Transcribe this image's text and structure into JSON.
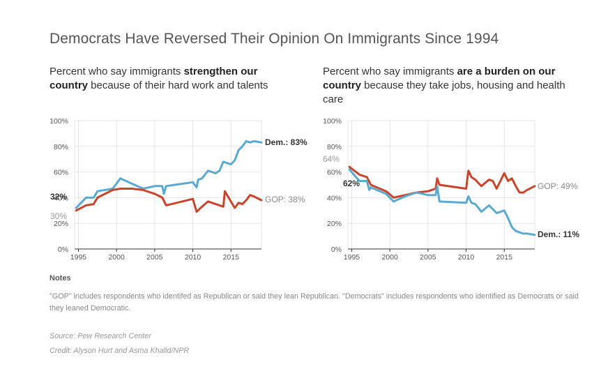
{
  "title": "Democrats Have Reversed Their Opinion On Immigrants Since 1994",
  "left_subtitle": {
    "pre": "Percent who say immigrants ",
    "bold1": "strengthen our",
    "bold2": "country",
    "post": " because of their hard work and talents"
  },
  "right_subtitle": {
    "pre": "Percent who say immigrants ",
    "bold1": "are a burden on our",
    "bold2": "country",
    "post": " because they take jobs, housing and health care"
  },
  "colors": {
    "dem": "#5aa9d0",
    "gop": "#c8452c",
    "grid": "#e5e5e5",
    "axis": "#333333"
  },
  "chart_data": [
    {
      "type": "line",
      "title": "Percent who say immigrants strengthen our country because of their hard work and talents",
      "xlim": [
        1994.5,
        2019
      ],
      "ylim": [
        0,
        100
      ],
      "x_ticks": [
        1995,
        2000,
        2005,
        2010,
        2015
      ],
      "y_ticks": [
        0,
        20,
        40,
        60,
        80,
        100
      ],
      "y_tick_labels": [
        "0%",
        "20%",
        "40%",
        "60%",
        "80%",
        "100%"
      ],
      "grid": true,
      "series": [
        {
          "name": "Dem.",
          "x": [
            1994.7,
            1996,
            1997,
            1997.5,
            1999.5,
            2000.5,
            2002,
            2003.5,
            2005,
            2006,
            2006.2,
            2006.5,
            2010,
            2010.5,
            2010.7,
            2011.2,
            2012,
            2013,
            2013.5,
            2014,
            2015,
            2015.5,
            2016,
            2016.5,
            2017,
            2017.5,
            2018,
            2019
          ],
          "y": [
            32,
            40,
            40,
            45,
            47,
            55,
            51,
            47,
            49,
            49,
            43,
            49,
            52,
            48,
            54,
            55,
            61,
            59,
            61,
            68,
            66,
            69,
            77,
            80,
            84,
            83,
            84,
            83
          ]
        },
        {
          "name": "GOP",
          "x": [
            1994.7,
            1996,
            1997,
            1997.5,
            1999.5,
            2000.5,
            2002,
            2003.5,
            2005,
            2006,
            2006.5,
            2010,
            2010.5,
            2011.2,
            2012,
            2013,
            2014,
            2014.2,
            2015,
            2015.5,
            2016,
            2016.5,
            2017,
            2017.5,
            2018,
            2019
          ],
          "y": [
            30,
            34,
            35,
            40,
            46,
            47,
            47,
            46,
            43,
            40,
            34,
            39,
            29,
            33,
            37,
            35,
            33,
            45,
            37,
            32,
            36,
            35,
            38,
            42,
            41,
            38
          ]
        }
      ],
      "annotations": {
        "dem_start": "32%",
        "gop_start": "30%",
        "dem_end": "Dem.: 83%",
        "gop_end": "GOP: 38%"
      }
    },
    {
      "type": "line",
      "title": "Percent who say immigrants are a burden on our country because they take jobs, housing and health care",
      "xlim": [
        1994.5,
        2019
      ],
      "ylim": [
        0,
        100
      ],
      "x_ticks": [
        1995,
        2000,
        2005,
        2010,
        2015
      ],
      "y_ticks": [
        0,
        20,
        40,
        60,
        80,
        100
      ],
      "y_tick_labels": [
        "0%",
        "20%",
        "40%",
        "60%",
        "80%",
        "100%"
      ],
      "grid": true,
      "series": [
        {
          "name": "GOP",
          "x": [
            1994.7,
            1996,
            1997,
            1997.5,
            1999.5,
            2000.5,
            2002,
            2003.5,
            2005,
            2006,
            2006.2,
            2006.5,
            2010,
            2010.3,
            2010.7,
            2011.2,
            2012,
            2013,
            2013.5,
            2014,
            2015,
            2015.5,
            2016,
            2016.5,
            2017,
            2017.5,
            2018,
            2019
          ],
          "y": [
            64,
            58,
            56,
            50,
            45,
            40,
            42,
            44,
            45,
            47,
            55,
            50,
            47,
            61,
            56,
            54,
            49,
            54,
            53,
            47,
            59,
            53,
            55,
            49,
            44,
            44,
            46,
            49
          ]
        },
        {
          "name": "Dem.",
          "x": [
            1994.7,
            1996,
            1997,
            1997.3,
            1997.5,
            1999.5,
            2000.5,
            2002,
            2003.5,
            2005,
            2006,
            2006.2,
            2006.5,
            2010,
            2010.3,
            2010.7,
            2011.2,
            2012,
            2013,
            2014,
            2015,
            2015.5,
            2016,
            2016.5,
            2017,
            2017.5,
            2018,
            2019
          ],
          "y": [
            62,
            53,
            53,
            46,
            48,
            43,
            37,
            41,
            44,
            42,
            42,
            49,
            37,
            36,
            41,
            36,
            35,
            29,
            34,
            28,
            30,
            24,
            17,
            14,
            13,
            12,
            12,
            11
          ]
        }
      ],
      "annotations": {
        "gop_start": "64%",
        "dem_start": "62%",
        "gop_end": "GOP: 49%",
        "dem_end": "Dem.: 11%"
      }
    }
  ],
  "notes": {
    "heading": "Notes",
    "text": "\"GOP\" includes respondents who identifed as Republican or said they lean Republican. \"Democrats\" includes respondents who identified as Democrats or said they leaned Democratic."
  },
  "source": "Source: Pew Research Center",
  "credit": "Credit: Alyson Hurt and Asma Khalid/NPR"
}
